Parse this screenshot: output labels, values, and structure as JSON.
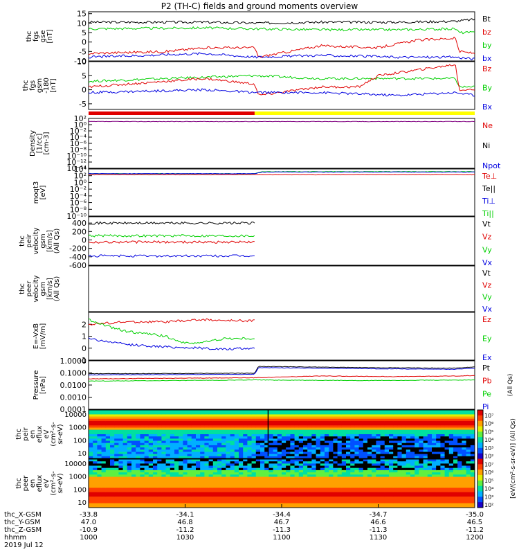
{
  "title": "P2 (TH-C) fields and ground moments overview",
  "colors": {
    "black": "#000000",
    "red": "#e00000",
    "green": "#00d000",
    "blue": "#0000e0",
    "yellow": "#ffff00",
    "purple": "#800080"
  },
  "chart_data": [
    {
      "type": "line",
      "panel": "fgs_gse",
      "ylabel": [
        "thc",
        "fgs",
        "gse",
        "[nT]"
      ],
      "yticks": [
        15,
        10,
        5,
        0,
        -5,
        -10
      ],
      "ylim": [
        -10,
        16
      ],
      "legend": [
        {
          "name": "Bt",
          "color": "#000000"
        },
        {
          "name": "bz",
          "color": "#e00000"
        },
        {
          "name": "by",
          "color": "#00d000"
        },
        {
          "name": "bx",
          "color": "#0000e0"
        }
      ],
      "series": [
        {
          "name": "Bt",
          "color": "#000000",
          "x": [
            0,
            0.3,
            0.43,
            0.6,
            0.8,
            0.95,
            1
          ],
          "y": [
            10.5,
            10.5,
            10,
            10.5,
            10.5,
            11,
            12
          ]
        },
        {
          "name": "by",
          "color": "#00d000",
          "x": [
            0,
            0.3,
            0.43,
            0.6,
            0.8,
            0.95,
            0.96,
            1
          ],
          "y": [
            7,
            7.5,
            7,
            6.5,
            6.5,
            7,
            5,
            5
          ]
        },
        {
          "name": "bz",
          "color": "#e00000",
          "x": [
            0,
            0.2,
            0.3,
            0.43,
            0.44,
            0.6,
            0.75,
            0.85,
            0.95,
            0.96,
            1
          ],
          "y": [
            -6,
            -5,
            -3,
            -3,
            -8,
            -2,
            -3,
            1,
            2,
            -5,
            -6
          ]
        },
        {
          "name": "bx",
          "color": "#0000e0",
          "x": [
            0,
            0.3,
            0.43,
            0.6,
            0.8,
            0.95,
            1
          ],
          "y": [
            -8,
            -6,
            -8,
            -7,
            -8,
            -8,
            -9
          ]
        }
      ]
    },
    {
      "type": "line",
      "panel": "fgs_gsm",
      "ylabel": [
        "thc",
        "fgs",
        "gsm",
        "-180",
        "[nT]"
      ],
      "yticks": [
        10,
        5,
        0,
        -5
      ],
      "ylim": [
        -7,
        10
      ],
      "legend": [
        {
          "name": "Bz",
          "color": "#e00000"
        },
        {
          "name": "By",
          "color": "#00d000"
        },
        {
          "name": "Bx",
          "color": "#0000e0"
        }
      ],
      "series": [
        {
          "name": "By",
          "color": "#00d000",
          "x": [
            0,
            0.2,
            0.43,
            0.6,
            0.8,
            0.95,
            0.96,
            1
          ],
          "y": [
            3,
            4,
            5,
            4,
            4,
            4,
            1,
            1
          ]
        },
        {
          "name": "Bz",
          "color": "#e00000",
          "x": [
            0,
            0.2,
            0.3,
            0.43,
            0.44,
            0.6,
            0.7,
            0.75,
            0.85,
            0.95,
            0.96,
            1
          ],
          "y": [
            1,
            3,
            4,
            2,
            -2,
            1,
            1,
            5,
            7,
            9,
            0,
            0
          ]
        },
        {
          "name": "Bx",
          "color": "#0000e0",
          "x": [
            0,
            0.3,
            0.43,
            0.6,
            0.8,
            0.95,
            1
          ],
          "y": [
            -1,
            0,
            -1,
            -1,
            -2,
            -1,
            -2
          ]
        }
      ]
    },
    {
      "type": "line",
      "panel": "density",
      "scale": "log",
      "ylabel": [
        "Density",
        "[1/cc]",
        "[cm-3]"
      ],
      "yticks": [
        "10²",
        "10⁰",
        "10⁻²",
        "10⁻⁴",
        "10⁻⁶",
        "10⁻⁸",
        "10⁻¹⁰",
        "10⁻¹²",
        "10⁻¹⁴"
      ],
      "ylim_exp": [
        -14,
        2
      ],
      "legend": [
        {
          "name": "Ne",
          "color": "#e00000"
        },
        {
          "name": "Ni",
          "color": "#000000"
        },
        {
          "name": "Npot",
          "color": "#0000e0"
        }
      ],
      "series": [
        {
          "name": "Ne",
          "color": "#800080",
          "x": [
            0,
            1
          ],
          "y": [
            1,
            1
          ]
        }
      ]
    },
    {
      "type": "line",
      "panel": "temperature",
      "scale": "log",
      "ylabel": [
        "moqt3",
        "[eV]"
      ],
      "yticks": [
        "10⁴",
        "10²",
        "10⁰",
        "10⁻²",
        "10⁻⁴",
        "10⁻⁶",
        "10⁻⁸",
        "10⁻¹⁰"
      ],
      "ylim_exp": [
        -10,
        4
      ],
      "legend": [
        {
          "name": "Te⊥",
          "color": "#e00000"
        },
        {
          "name": "Te||",
          "color": "#000000"
        },
        {
          "name": "Ti⊥",
          "color": "#0000e0"
        },
        {
          "name": "Ti||",
          "color": "#00d000"
        }
      ],
      "series": [
        {
          "name": "Ti||",
          "color": "#00d000",
          "x": [
            0,
            0.43,
            0.45,
            1
          ],
          "y": [
            2.6,
            2.6,
            3.2,
            3.2
          ]
        },
        {
          "name": "Ti⊥",
          "color": "#0000e0",
          "x": [
            0,
            0.43,
            0.45,
            1
          ],
          "y": [
            2.6,
            2.6,
            3.1,
            3.1
          ]
        },
        {
          "name": "Te⊥",
          "color": "#e00000",
          "x": [
            0,
            1
          ],
          "y": [
            2.3,
            2.3
          ]
        }
      ]
    },
    {
      "type": "line",
      "panel": "peir_velocity",
      "ylabel": [
        "thc",
        "peir",
        "velocity",
        "gsm",
        "[km/s]",
        "(All Qs)"
      ],
      "yticks": [
        400,
        200,
        0,
        -200,
        -400,
        -600
      ],
      "ylim": [
        -600,
        550
      ],
      "legend": [
        {
          "name": "Vt",
          "color": "#000000"
        },
        {
          "name": "Vz",
          "color": "#e00000"
        },
        {
          "name": "Vy",
          "color": "#00d000"
        },
        {
          "name": "Vx",
          "color": "#0000e0"
        }
      ],
      "series": [
        {
          "name": "Vt",
          "color": "#000000",
          "x": [
            0,
            0.43
          ],
          "y": [
            400,
            400
          ]
        },
        {
          "name": "Vy",
          "color": "#00d000",
          "x": [
            0,
            0.43
          ],
          "y": [
            100,
            100
          ]
        },
        {
          "name": "Vz",
          "color": "#e00000",
          "x": [
            0,
            0.43
          ],
          "y": [
            -50,
            -50
          ]
        },
        {
          "name": "Vx",
          "color": "#0000e0",
          "x": [
            0,
            0.43
          ],
          "y": [
            -380,
            -380
          ]
        }
      ]
    },
    {
      "type": "line",
      "panel": "peer_velocity",
      "ylabel": [
        "thc",
        "peer",
        "velocity",
        "gsm",
        "[km/s]",
        "(All Qs)"
      ],
      "legend": [
        {
          "name": "Vt",
          "color": "#000000"
        },
        {
          "name": "Vz",
          "color": "#e00000"
        },
        {
          "name": "Vy",
          "color": "#00d000"
        },
        {
          "name": "Vx",
          "color": "#0000e0"
        }
      ],
      "series": []
    },
    {
      "type": "line",
      "panel": "efield",
      "ylabel": [
        "E=-VxB",
        "[mV/m]"
      ],
      "yticks": [
        2,
        1,
        0,
        -1
      ],
      "ylim": [
        -1,
        3
      ],
      "legend": [
        {
          "name": "Ez",
          "color": "#e00000"
        },
        {
          "name": "Ey",
          "color": "#00d000"
        },
        {
          "name": "Ex",
          "color": "#0000e0"
        }
      ],
      "series": [
        {
          "name": "Ez",
          "color": "#e00000",
          "x": [
            0,
            0.1,
            0.2,
            0.3,
            0.35,
            0.43
          ],
          "y": [
            2,
            2.2,
            2.2,
            2.4,
            2.3,
            2.3
          ]
        },
        {
          "name": "Ey",
          "color": "#00d000",
          "x": [
            0,
            0.05,
            0.1,
            0.2,
            0.25,
            0.3,
            0.35,
            0.43
          ],
          "y": [
            2.4,
            1.8,
            1.4,
            1,
            0.4,
            0.5,
            0.8,
            0.8
          ]
        },
        {
          "name": "Ex",
          "color": "#0000e0",
          "x": [
            0,
            0.1,
            0.2,
            0.3,
            0.35,
            0.43
          ],
          "y": [
            0.8,
            0.3,
            0.1,
            0,
            -0.1,
            0
          ]
        }
      ]
    },
    {
      "type": "line",
      "panel": "pressure",
      "scale": "log",
      "ylabel": [
        "Pressure",
        "[nPa]"
      ],
      "yticks": [
        "1.0000",
        "0.1000",
        "0.0100",
        "0.0010",
        "0.0001"
      ],
      "ylim_exp": [
        -4,
        0.3
      ],
      "legend": [
        {
          "name": "Pt",
          "color": "#000000"
        },
        {
          "name": "Pb",
          "color": "#e00000"
        },
        {
          "name": "Pe",
          "color": "#00d000"
        },
        {
          "name": "Pi",
          "color": "#0000e0"
        }
      ],
      "side_label": "(All Qs)",
      "series": [
        {
          "name": "Pt",
          "color": "#000000",
          "x": [
            0,
            0.43,
            0.44,
            0.7,
            0.95,
            1
          ],
          "y": [
            -0.85,
            -0.8,
            -0.2,
            -0.3,
            -0.35,
            -0.25
          ]
        },
        {
          "name": "Pi",
          "color": "#0000e0",
          "x": [
            0,
            0.43,
            0.44,
            0.7,
            0.95,
            1
          ],
          "y": [
            -0.95,
            -0.9,
            -0.3,
            -0.4,
            -0.45,
            -0.35
          ]
        },
        {
          "name": "Pb",
          "color": "#e00000",
          "x": [
            0,
            0.43,
            0.6,
            0.8,
            0.95,
            1
          ],
          "y": [
            -1.3,
            -1.2,
            -1.05,
            -1.1,
            -1.05,
            -1.0
          ]
        },
        {
          "name": "Pe",
          "color": "#00d000",
          "x": [
            0,
            0.43,
            0.7,
            1
          ],
          "y": [
            -1.5,
            -1.4,
            -1.45,
            -1.4
          ]
        }
      ]
    },
    {
      "type": "heatmap",
      "panel": "peir_spectrogram",
      "ylabel": [
        "thc",
        "peir",
        "en",
        "eflux",
        "eV",
        "(cm²-s-",
        "sr-eV)"
      ],
      "yticks": [
        "10000",
        "1000",
        "100",
        "10"
      ]
    },
    {
      "type": "heatmap",
      "panel": "peer_spectrogram",
      "ylabel": [
        "thc",
        "peer",
        "en",
        "eflux",
        "eV",
        "(cm²-s-",
        "sr-eV)"
      ],
      "yticks": [
        "10000",
        "1000",
        "100",
        "10"
      ],
      "colorbar": {
        "label": "[eV/(cm²-s-sr-eV)] (All Qs)",
        "ticks": [
          "10⁷",
          "10⁶",
          "10⁵",
          "10⁴",
          "10³",
          "10²",
          "10⁷",
          "10⁶",
          "10⁵",
          "10⁴",
          "10³",
          "10²"
        ]
      }
    }
  ],
  "x_axis": {
    "labels": [
      {
        "tick": "-33.8",
        "y": "47.0",
        "z": "-10.9",
        "hhmm": "1000"
      },
      {
        "tick": "-34.1",
        "y": "46.8",
        "z": "-11.2",
        "hhmm": "1030"
      },
      {
        "tick": "-34.4",
        "y": "46.7",
        "z": "-11.3",
        "hhmm": "1100"
      },
      {
        "tick": "-34.7",
        "y": "46.6",
        "z": "-11.3",
        "hhmm": "1130"
      },
      {
        "tick": "-35.0",
        "y": "46.5",
        "z": "-11.2",
        "hhmm": "1200"
      }
    ],
    "row_labels": [
      "thc_X-GSM",
      "thc_Y-GSM",
      "thc_Z-GSM",
      "hhmm"
    ],
    "date": "2019 Jul 12"
  },
  "mode_bar": {
    "red_fraction": 0.43
  }
}
